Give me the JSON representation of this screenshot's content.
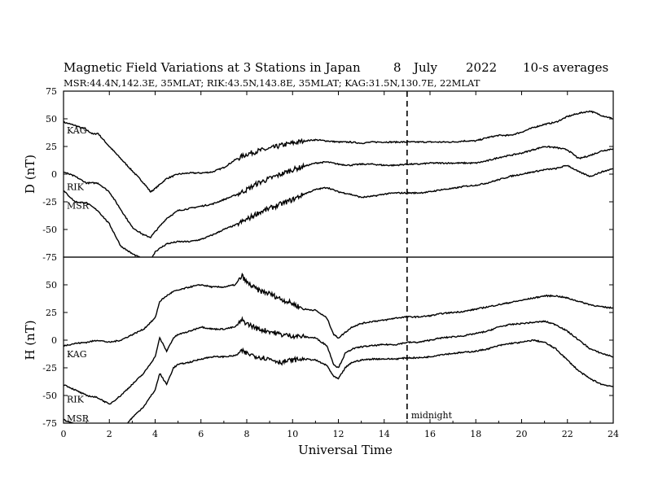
{
  "chart_data": {
    "type": "line",
    "title": "Magnetic Field Variations at 3 Stations in Japan",
    "date_day": "8",
    "date_month": "July",
    "date_year": "2022",
    "averaging": "10-s averages",
    "subtitle": "MSR:44.4N,142.3E, 35MLAT;  RIK:43.5N,143.8E, 35MLAT;  KAG:31.5N,130.7E, 22MLAT",
    "xlabel": "Universal Time",
    "xlim": [
      0,
      24
    ],
    "xticks": [
      0,
      2,
      4,
      6,
      8,
      10,
      12,
      14,
      16,
      18,
      20,
      22,
      24
    ],
    "annotation": {
      "label": "midnight",
      "x": 15
    },
    "grid": false,
    "panels": [
      {
        "ylabel": "D (nT)",
        "ylim": [
          -75,
          75
        ],
        "yticks": [
          -75,
          -50,
          -25,
          0,
          25,
          50,
          75
        ],
        "series": [
          {
            "name": "KAG",
            "x": [
              0,
              0.5,
              1,
              1.3,
              1.5,
              1.7,
              2,
              2.5,
              3,
              3.5,
              3.8,
              4,
              4.5,
              5,
              5.5,
              6,
              6.5,
              7,
              7.5,
              8,
              8.5,
              9,
              9.5,
              10,
              10.5,
              11,
              11.5,
              12,
              12.5,
              13,
              13.5,
              14,
              14.5,
              15,
              15.5,
              16,
              16.5,
              17,
              17.5,
              18,
              18.5,
              19,
              19.5,
              20,
              20.5,
              21,
              21.5,
              22,
              22.5,
              23,
              23.5,
              24
            ],
            "y": [
              47,
              44,
              40,
              36,
              37,
              32,
              25,
              14,
              3,
              -8,
              -16,
              -13,
              -4,
              0,
              1,
              1,
              2,
              6,
              13,
              18,
              21,
              23,
              26,
              28,
              30,
              31,
              30,
              29,
              29,
              28,
              29,
              29,
              29,
              29,
              29,
              29,
              29,
              29,
              30,
              30,
              33,
              35,
              35,
              38,
              42,
              45,
              47,
              52,
              55,
              57,
              53,
              50
            ]
          },
          {
            "name": "RIK",
            "x": [
              0,
              0.5,
              1,
              1.5,
              2,
              2.5,
              3,
              3.5,
              3.8,
              4,
              4.5,
              5,
              5.5,
              6,
              6.5,
              7,
              7.5,
              8,
              8.5,
              9,
              9.5,
              10,
              10.5,
              11,
              11.5,
              12,
              12.5,
              13,
              13.5,
              14,
              14.5,
              15,
              15.5,
              16,
              16.5,
              17,
              17.5,
              18,
              18.5,
              19,
              19.5,
              20,
              20.5,
              21,
              21.5,
              22,
              22.5,
              23,
              23.5,
              24
            ],
            "y": [
              2,
              -2,
              -8,
              -8,
              -16,
              -32,
              -48,
              -55,
              -57,
              -52,
              -40,
              -33,
              -31,
              -29,
              -27,
              -23,
              -19,
              -14,
              -8,
              -4,
              0,
              4,
              7,
              10,
              11,
              9,
              8,
              9,
              9,
              8,
              8,
              9,
              9,
              10,
              10,
              10,
              10,
              10,
              12,
              15,
              17,
              19,
              22,
              25,
              24,
              22,
              14,
              17,
              21,
              23
            ]
          },
          {
            "name": "MSR",
            "x": [
              0,
              0.5,
              1,
              1.5,
              2,
              2.5,
              3,
              3.5,
              3.8,
              4,
              4.5,
              5,
              5.5,
              6,
              6.5,
              7,
              7.5,
              8,
              8.5,
              9,
              9.5,
              10,
              10.5,
              11,
              11.5,
              12,
              12.5,
              13,
              13.5,
              14,
              14.5,
              15,
              15.5,
              16,
              16.5,
              17,
              17.5,
              18,
              18.5,
              19,
              19.5,
              20,
              20.5,
              21,
              21.5,
              22,
              22.5,
              23,
              23.5,
              24
            ],
            "y": [
              -15,
              -25,
              -26,
              -33,
              -45,
              -65,
              -72,
              -77,
              -78,
              -70,
              -63,
              -61,
              -61,
              -59,
              -55,
              -50,
              -46,
              -41,
              -35,
              -31,
              -27,
              -23,
              -18,
              -14,
              -12,
              -16,
              -18,
              -21,
              -20,
              -18,
              -17,
              -17,
              -17,
              -16,
              -14,
              -13,
              -11,
              -10,
              -8,
              -5,
              -2,
              0,
              2,
              4,
              5,
              8,
              2,
              -2,
              2,
              5
            ]
          }
        ]
      },
      {
        "ylabel": "H (nT)",
        "ylim": [
          -75,
          75
        ],
        "yticks": [
          -75,
          -50,
          -25,
          0,
          25,
          50,
          75
        ],
        "series": [
          {
            "name": "KAG",
            "x": [
              0,
              0.5,
              1,
              1.5,
              2,
              2.5,
              3,
              3.5,
              4,
              4.2,
              4.5,
              4.8,
              5,
              5.5,
              6,
              6.5,
              7,
              7.5,
              7.8,
              8,
              8.5,
              9,
              9.5,
              10,
              10.5,
              11,
              11.5,
              11.8,
              12,
              12.3,
              12.6,
              13,
              13.5,
              14,
              14.5,
              15,
              15.5,
              16,
              16.5,
              17,
              17.5,
              18,
              18.5,
              19,
              19.5,
              20,
              20.5,
              21,
              21.5,
              22,
              22.5,
              23,
              23.5,
              24
            ],
            "y": [
              -5,
              -3,
              -2,
              0,
              -2,
              0,
              5,
              10,
              20,
              35,
              40,
              44,
              45,
              48,
              50,
              48,
              48,
              50,
              58,
              52,
              45,
              42,
              37,
              33,
              28,
              27,
              20,
              5,
              2,
              7,
              12,
              15,
              17,
              18,
              20,
              21,
              21,
              22,
              24,
              25,
              26,
              28,
              30,
              32,
              34,
              36,
              38,
              40,
              40,
              38,
              35,
              32,
              30,
              29
            ]
          },
          {
            "name": "RIK",
            "x": [
              0,
              0.5,
              1,
              1.5,
              2,
              2.5,
              3,
              3.5,
              4,
              4.2,
              4.5,
              4.8,
              5,
              5.5,
              6,
              6.5,
              7,
              7.5,
              7.8,
              8,
              8.5,
              9,
              9.5,
              10,
              10.5,
              11,
              11.5,
              11.8,
              12,
              12.3,
              12.6,
              13,
              13.5,
              14,
              14.5,
              15,
              15.5,
              16,
              16.5,
              17,
              17.5,
              18,
              18.5,
              19,
              19.5,
              20,
              20.5,
              21,
              21.5,
              22,
              22.5,
              23,
              23.5,
              24
            ],
            "y": [
              -40,
              -45,
              -50,
              -52,
              -58,
              -50,
              -40,
              -30,
              -15,
              2,
              -10,
              2,
              5,
              8,
              12,
              10,
              10,
              12,
              18,
              15,
              10,
              8,
              5,
              4,
              3,
              2,
              -5,
              -22,
              -25,
              -12,
              -8,
              -6,
              -5,
              -4,
              -4,
              -2,
              -2,
              0,
              2,
              3,
              4,
              6,
              8,
              12,
              14,
              15,
              16,
              17,
              14,
              8,
              0,
              -8,
              -12,
              -15
            ]
          },
          {
            "name": "MSR",
            "x": [
              0,
              0.5,
              1,
              1.5,
              2,
              2.5,
              3,
              3.5,
              4,
              4.2,
              4.5,
              4.8,
              5,
              5.5,
              6,
              6.5,
              7,
              7.5,
              7.8,
              8,
              8.5,
              9,
              9.5,
              10,
              10.5,
              11,
              11.5,
              11.8,
              12,
              12.3,
              12.6,
              13,
              13.5,
              14,
              14.5,
              15,
              15.5,
              16,
              16.5,
              17,
              17.5,
              18,
              18.5,
              19,
              19.5,
              20,
              20.5,
              21,
              21.5,
              22,
              22.5,
              23,
              23.5,
              24
            ],
            "y": [
              -72,
              -76,
              -80,
              -85,
              -92,
              -82,
              -70,
              -60,
              -45,
              -30,
              -40,
              -25,
              -22,
              -20,
              -17,
              -15,
              -15,
              -14,
              -10,
              -12,
              -15,
              -17,
              -20,
              -18,
              -17,
              -18,
              -23,
              -33,
              -35,
              -25,
              -20,
              -18,
              -17,
              -17,
              -17,
              -16,
              -16,
              -15,
              -13,
              -12,
              -11,
              -10,
              -8,
              -5,
              -3,
              -2,
              0,
              -2,
              -8,
              -18,
              -28,
              -35,
              -40,
              -42
            ]
          }
        ]
      }
    ]
  }
}
